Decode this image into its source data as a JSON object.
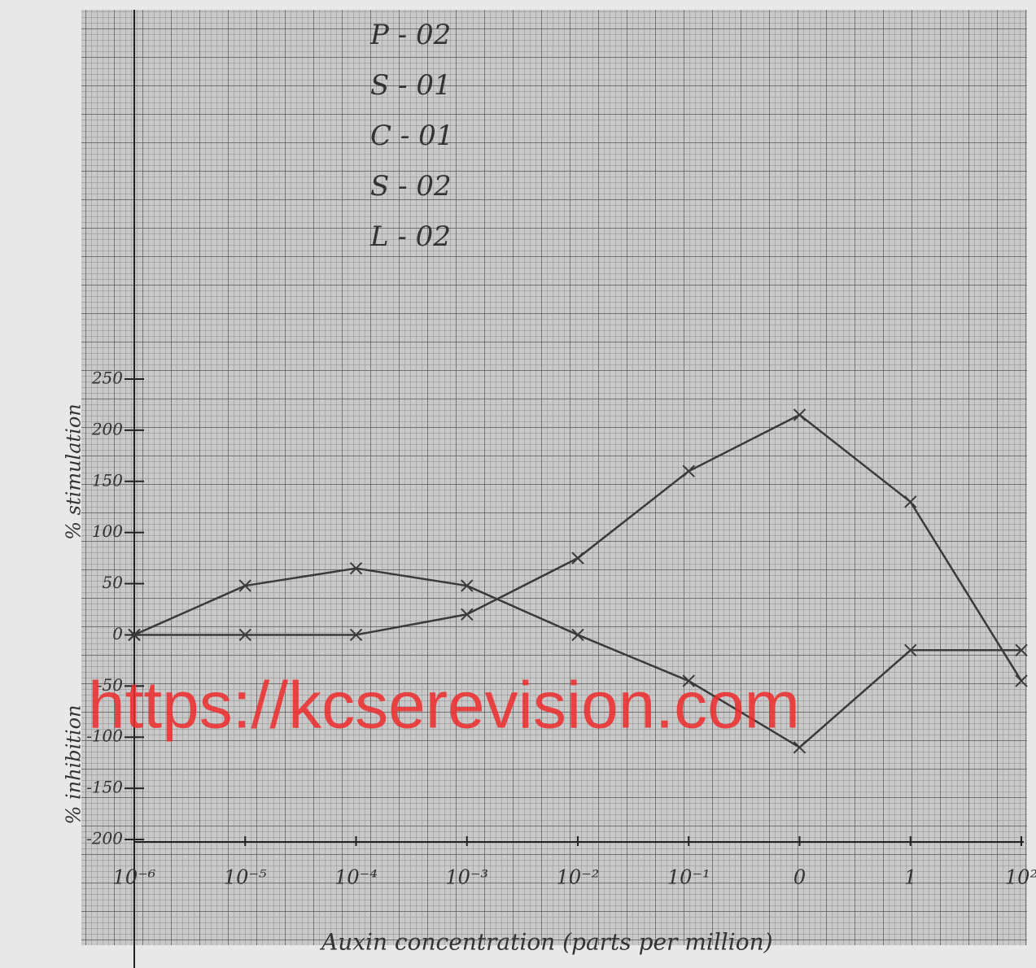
{
  "chart_data": {
    "type": "line",
    "notes": [
      "P - 02",
      "S - 01",
      "C - 01",
      "S - 02",
      "L - 02"
    ],
    "y_label_upper": "% stimulation",
    "y_label_lower": "% inhibition",
    "x_label": "Auxin concentration (parts per million)",
    "watermark": "https://kcserevision.com",
    "categories": [
      "10⁻⁶",
      "10⁻⁵",
      "10⁻⁴",
      "10⁻³",
      "10⁻²",
      "10⁻¹",
      "0",
      "1",
      "10²"
    ],
    "series": [
      {
        "color": "#3a3a3a",
        "values": [
          0,
          0,
          0,
          20,
          75,
          160,
          215,
          130,
          -45
        ]
      },
      {
        "color": "#3a3a3a",
        "values": [
          0,
          48,
          65,
          48,
          0,
          -45,
          -110,
          -15,
          -15
        ]
      }
    ],
    "ylim": [
      -200,
      250
    ],
    "yticks": [
      -200,
      -150,
      -100,
      -50,
      0,
      50,
      100,
      150,
      200,
      250
    ]
  }
}
